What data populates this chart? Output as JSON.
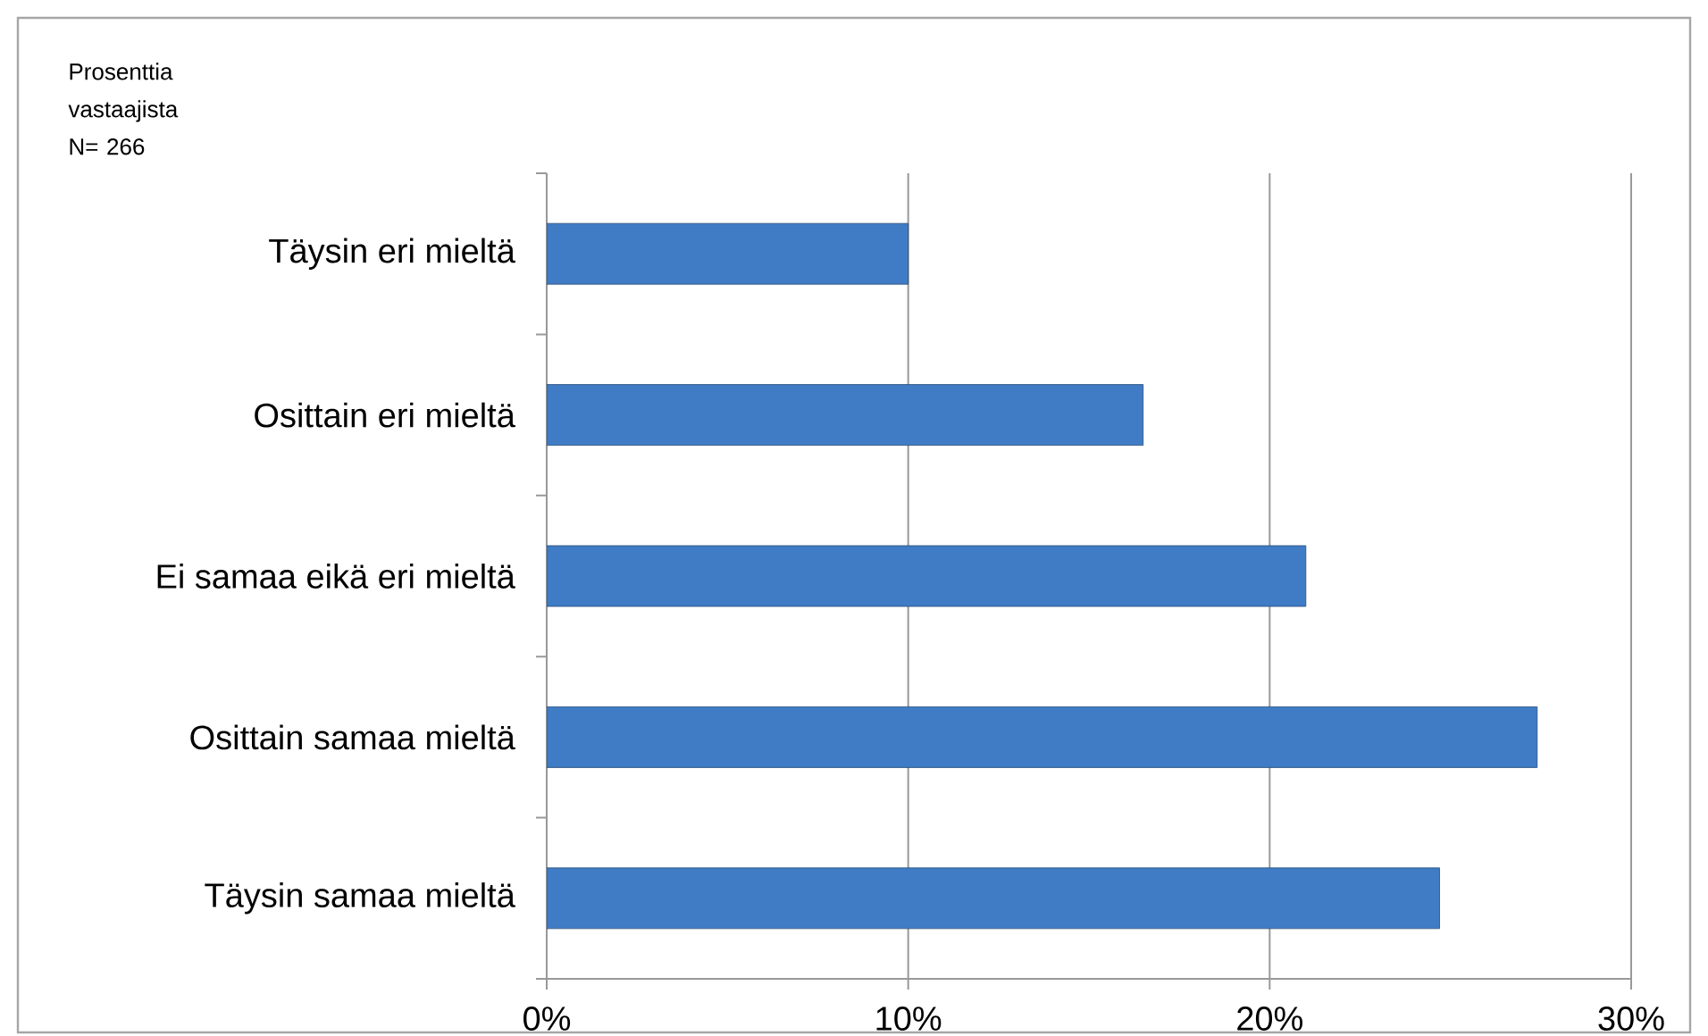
{
  "chart_data": {
    "type": "bar",
    "orientation": "horizontal",
    "categories": [
      "Täysin eri mieltä",
      "Osittain eri mieltä",
      "Ei samaa eikä eri mieltä",
      "Osittain samaa mieltä",
      "Täysin samaa mieltä"
    ],
    "values": [
      10.0,
      16.5,
      21.0,
      27.4,
      24.7
    ],
    "color": "#3f7cc5",
    "xlim": [
      0,
      30
    ],
    "xticks": [
      {
        "value": 0,
        "label": "0%"
      },
      {
        "value": 10,
        "label": "10%"
      },
      {
        "value": 20,
        "label": "20%"
      },
      {
        "value": 30,
        "label": "30%"
      }
    ],
    "grid": "x",
    "annotations": [
      "Prosenttia vastaajista N= 266"
    ]
  }
}
